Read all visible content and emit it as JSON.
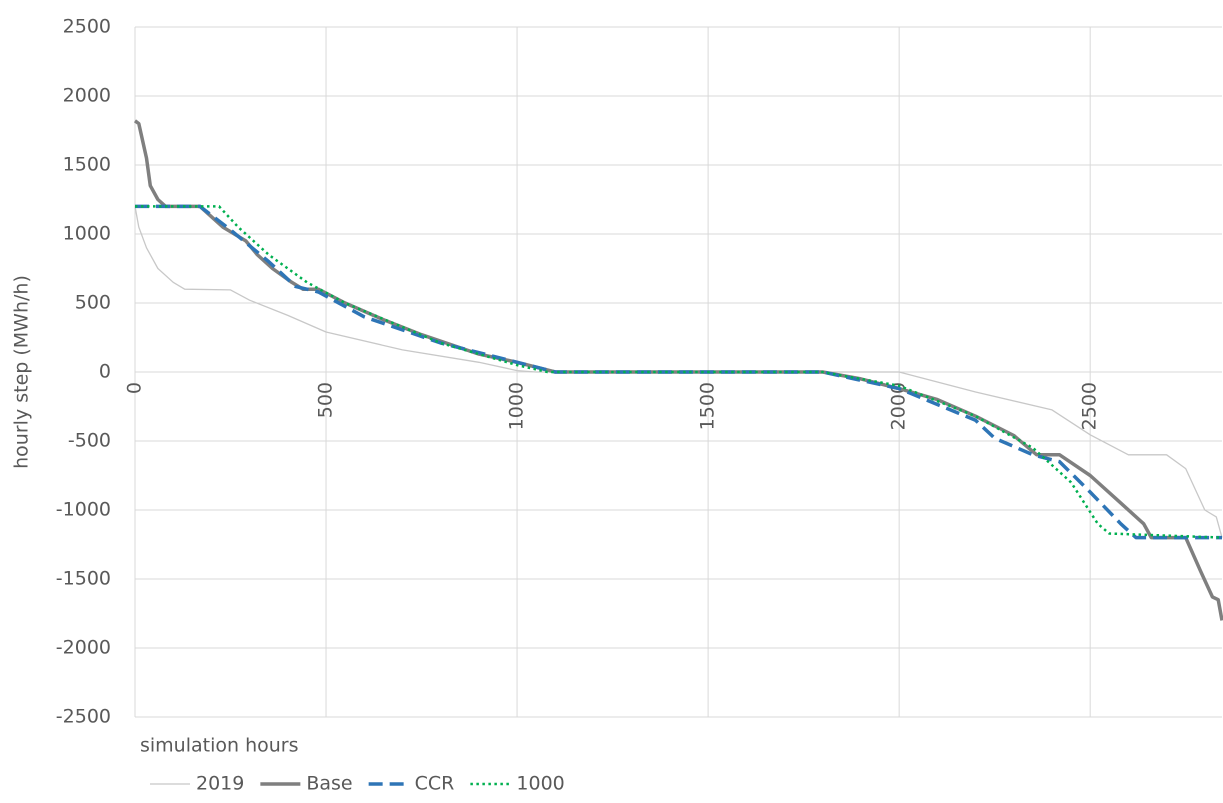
{
  "chart_data": {
    "type": "line",
    "x_label": "simulation hours",
    "y_label": "hourly step (MWh/h)",
    "xlim": [
      0,
      2845
    ],
    "xticks": [
      0,
      500,
      1000,
      1500,
      2000,
      2500
    ],
    "ylim": [
      -2500,
      2500
    ],
    "yticks": [
      -2500,
      -2000,
      -1500,
      -1000,
      -500,
      0,
      500,
      1000,
      1500,
      2000,
      2500
    ],
    "grid": true,
    "legend": "bottom",
    "series": [
      {
        "name": "2019",
        "color": "#c8c8c8",
        "line_width": 1.3,
        "line_style": "solid",
        "x": [
          0,
          10,
          30,
          60,
          100,
          130,
          250,
          300,
          400,
          500,
          700,
          900,
          1000,
          1050,
          2000,
          2200,
          2400,
          2500,
          2600,
          2700,
          2750,
          2800,
          2830,
          2845
        ],
        "values": [
          1200,
          1050,
          900,
          750,
          650,
          600,
          595,
          520,
          410,
          290,
          160,
          70,
          10,
          0,
          0,
          -145,
          -275,
          -455,
          -600,
          -600,
          -700,
          -1000,
          -1050,
          -1200
        ]
      },
      {
        "name": "Base",
        "color": "#7f7f7f",
        "line_width": 3.5,
        "line_style": "solid",
        "x": [
          0,
          10,
          30,
          40,
          60,
          80,
          170,
          230,
          290,
          320,
          360,
          410,
          440,
          480,
          550,
          650,
          750,
          900,
          1000,
          1100,
          1800,
          1900,
          2000,
          2100,
          2200,
          2300,
          2360,
          2420,
          2500,
          2580,
          2640,
          2660,
          2750,
          2790,
          2820,
          2835,
          2845
        ],
        "values": [
          1820,
          1800,
          1550,
          1350,
          1250,
          1200,
          1200,
          1050,
          950,
          850,
          750,
          650,
          600,
          600,
          500,
          380,
          270,
          130,
          70,
          0,
          0,
          -50,
          -120,
          -200,
          -320,
          -460,
          -600,
          -600,
          -750,
          -950,
          -1100,
          -1200,
          -1200,
          -1450,
          -1630,
          -1650,
          -1800
        ]
      },
      {
        "name": "CCR",
        "color": "#2e75b6",
        "line_width": 3.5,
        "line_style": "dashed",
        "x": [
          0,
          170,
          250,
          350,
          420,
          480,
          600,
          800,
          1000,
          1100,
          1800,
          2000,
          2200,
          2250,
          2350,
          2420,
          2500,
          2580,
          2620,
          2845
        ],
        "values": [
          1200,
          1200,
          1030,
          800,
          620,
          580,
          400,
          210,
          70,
          0,
          0,
          -120,
          -350,
          -480,
          -600,
          -650,
          -870,
          -1100,
          -1200,
          -1200
        ]
      },
      {
        "name": "1000",
        "color": "#00b050",
        "line_width": 2.5,
        "line_style": "dotted",
        "x": [
          0,
          220,
          270,
          350,
          450,
          550,
          800,
          1000,
          1080,
          1800,
          2000,
          2200,
          2350,
          2450,
          2520,
          2550,
          2845
        ],
        "values": [
          1200,
          1200,
          1050,
          850,
          650,
          500,
          210,
          50,
          0,
          0,
          -100,
          -320,
          -550,
          -800,
          -1100,
          -1170,
          -1200
        ]
      }
    ]
  }
}
